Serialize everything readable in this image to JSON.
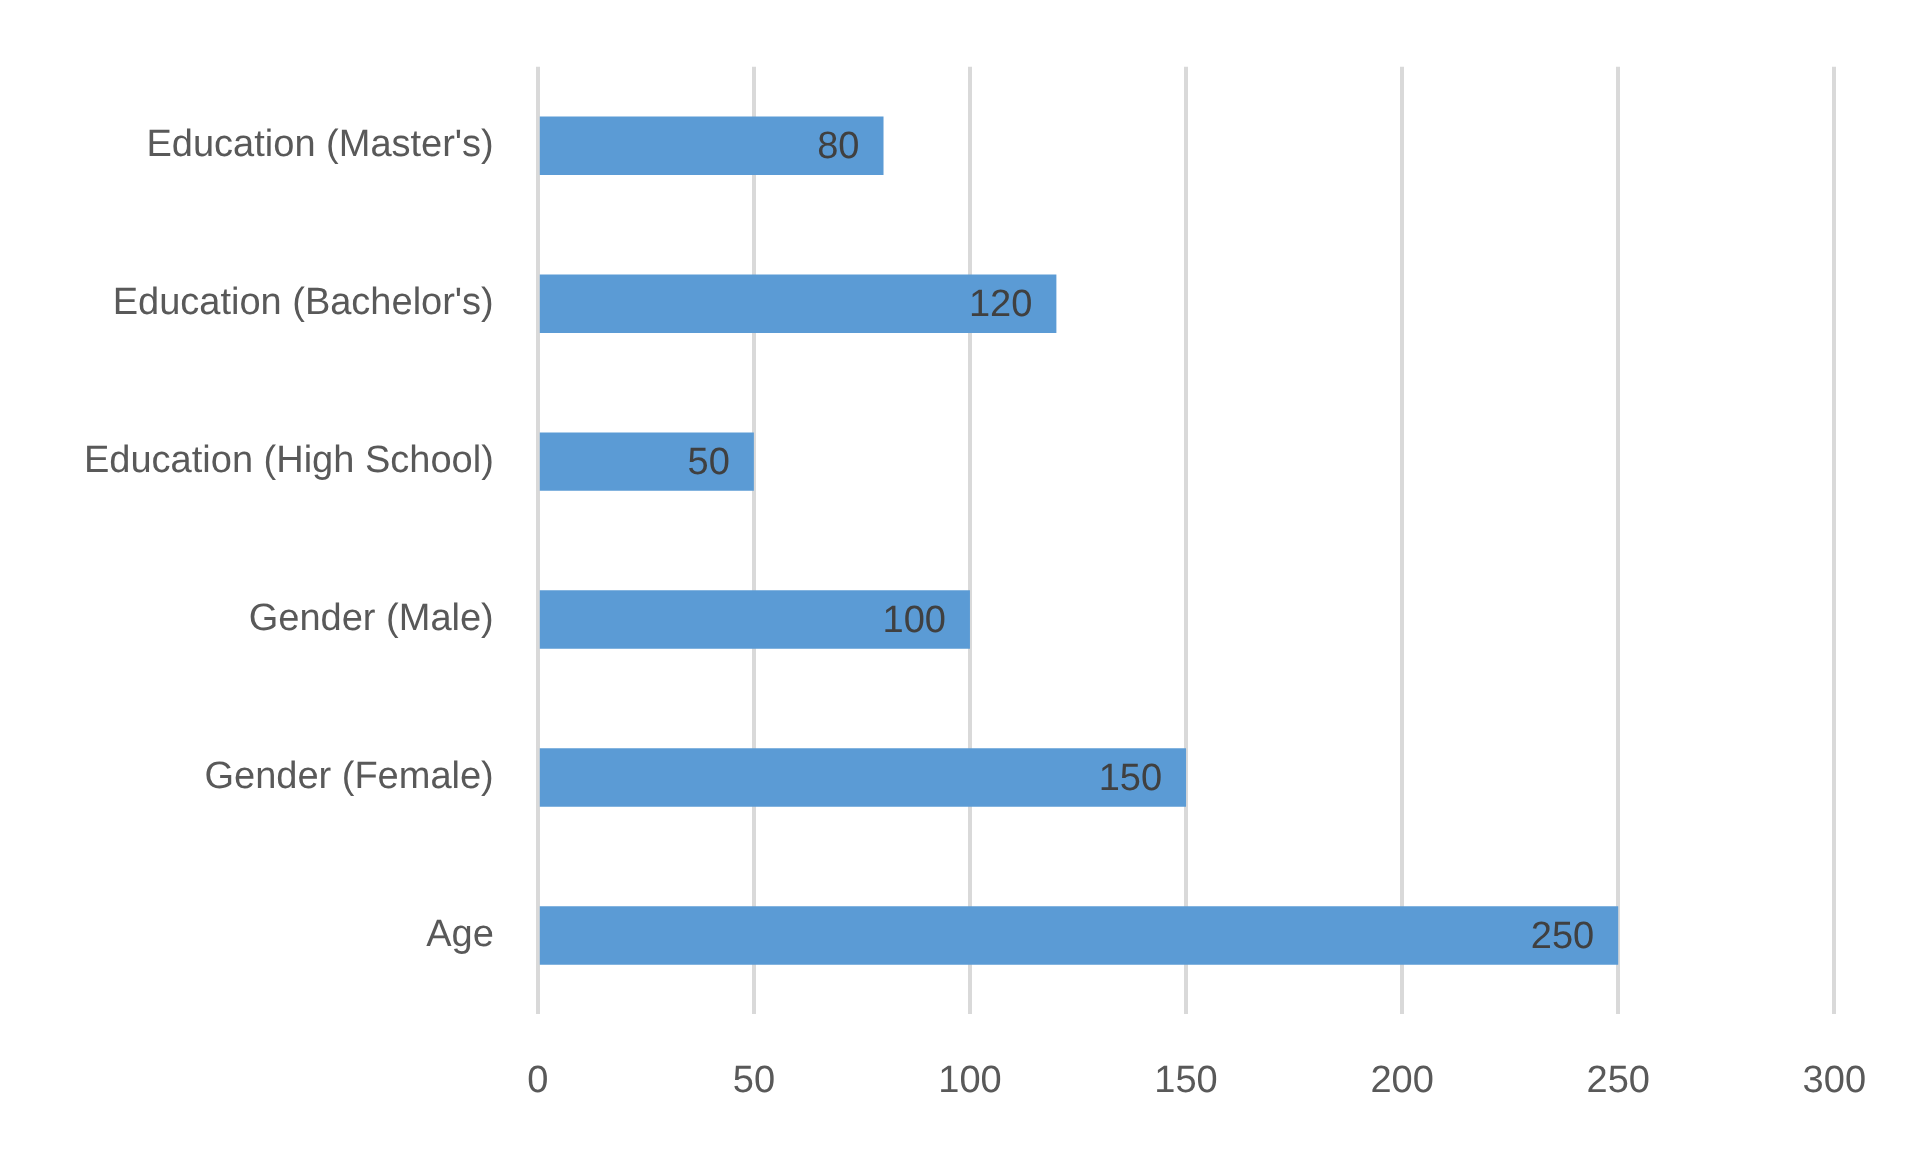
{
  "chart_data": {
    "type": "bar",
    "orientation": "horizontal",
    "categories": [
      "Education (Master's)",
      "Education (Bachelor's)",
      "Education (High School)",
      "Gender (Male)",
      "Gender (Female)",
      "Age"
    ],
    "values": [
      80,
      120,
      50,
      100,
      150,
      250
    ],
    "color": "#5b9bd5",
    "xlim": [
      0,
      300
    ],
    "xticks": [
      0,
      50,
      100,
      150,
      200,
      250,
      300
    ],
    "grid": "x",
    "data_labels": true,
    "legend": false
  }
}
